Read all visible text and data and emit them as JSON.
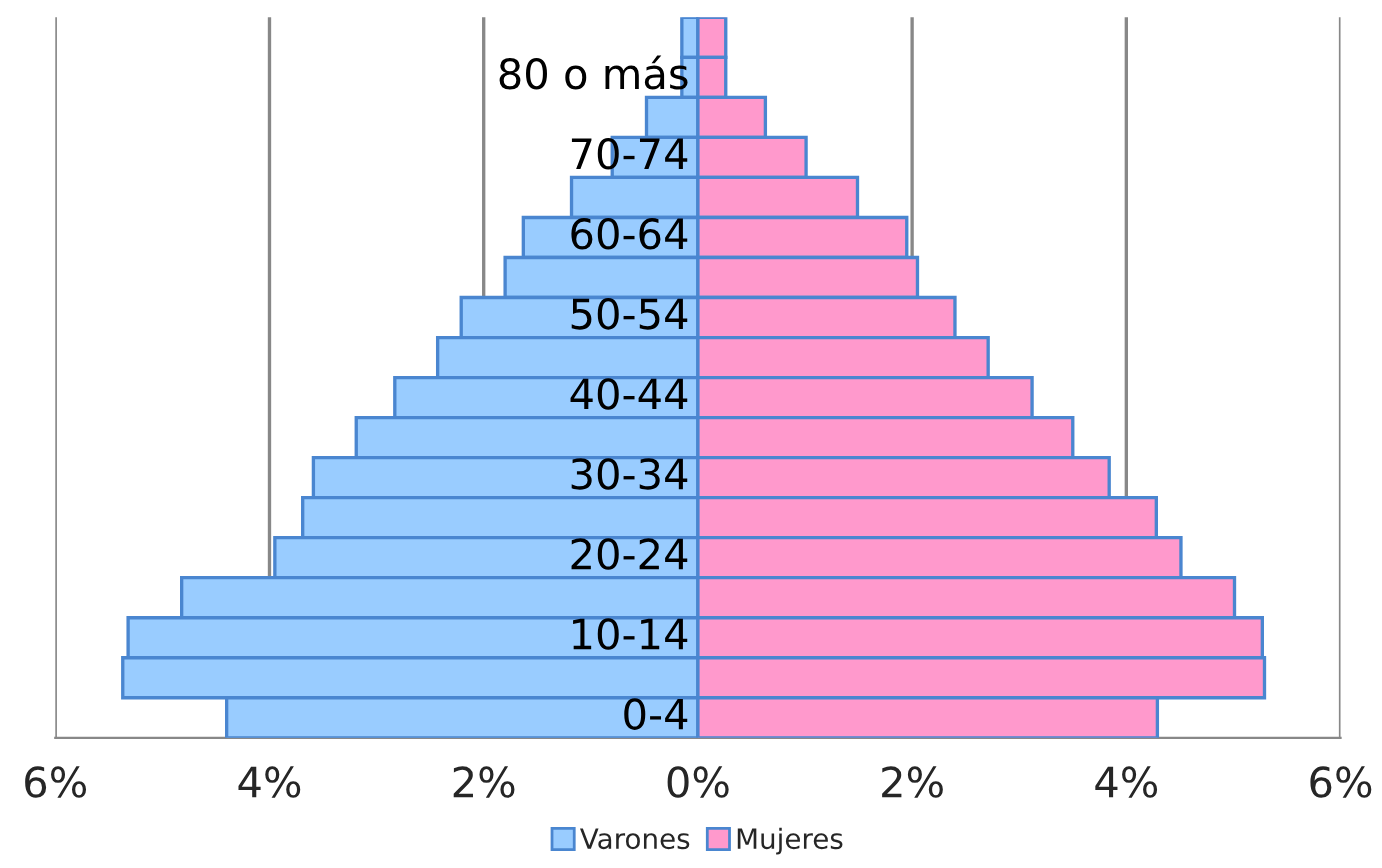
{
  "chart_data": {
    "type": "bar",
    "orientation": "horizontal",
    "stacked": true,
    "categories": [
      null,
      "80 o más",
      null,
      "70-74",
      null,
      "60-64",
      null,
      "50-54",
      null,
      "40-44",
      null,
      "30-34",
      null,
      "20-24",
      null,
      "10-14",
      null,
      "0-4"
    ],
    "series": [
      {
        "name": "Varones",
        "color": "#99ccff",
        "values": [
          -0.15,
          -0.15,
          -0.48,
          -0.8,
          -1.18,
          -1.63,
          -1.8,
          -2.21,
          -2.43,
          -2.83,
          -3.19,
          -3.59,
          -3.69,
          -3.95,
          -4.82,
          -5.32,
          -5.37,
          -4.4
        ]
      },
      {
        "name": "Mujeres",
        "color": "#ff99cc",
        "values": [
          0.26,
          0.26,
          0.63,
          1.01,
          1.49,
          1.95,
          2.05,
          2.4,
          2.71,
          3.12,
          3.5,
          3.84,
          4.28,
          4.51,
          5.01,
          5.27,
          5.29,
          4.29
        ]
      }
    ],
    "xlim": [
      -6,
      6
    ],
    "xticks": [
      {
        "value": -6,
        "label": "6%"
      },
      {
        "value": -4,
        "label": "4%"
      },
      {
        "value": -2,
        "label": "2%"
      },
      {
        "value": 0,
        "label": "0%"
      },
      {
        "value": 2,
        "label": "2%"
      },
      {
        "value": 4,
        "label": "4%"
      },
      {
        "value": 6,
        "label": "6%"
      }
    ],
    "grid": "x",
    "legend": "bottom"
  }
}
